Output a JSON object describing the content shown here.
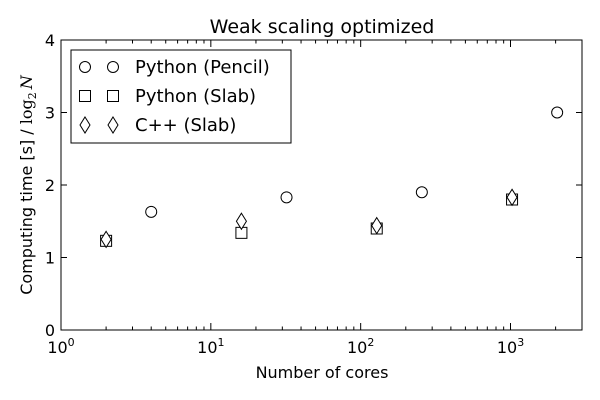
{
  "chart_data": {
    "type": "scatter",
    "title": "Weak scaling optimized",
    "xlabel": "Number of cores",
    "ylabel": "Computing time [s] / ",
    "ylabel_math": {
      "base": "log",
      "sub": "2",
      "var": "N"
    },
    "xscale": "log",
    "xlim": [
      1,
      3000
    ],
    "ylim": [
      0,
      4
    ],
    "x_ticks": [
      {
        "value": 1,
        "base": "10",
        "exp": "0"
      },
      {
        "value": 10,
        "base": "10",
        "exp": "1"
      },
      {
        "value": 100,
        "base": "10",
        "exp": "2"
      },
      {
        "value": 1000,
        "base": "10",
        "exp": "3"
      }
    ],
    "y_ticks": [
      {
        "value": 0,
        "label": "0"
      },
      {
        "value": 1,
        "label": "1"
      },
      {
        "value": 2,
        "label": "2"
      },
      {
        "value": 3,
        "label": "3"
      },
      {
        "value": 4,
        "label": "4"
      }
    ],
    "legend_position": "top-left",
    "series": [
      {
        "name": "Python (Pencil)",
        "marker": "circle",
        "x": [
          4,
          32,
          256,
          2048
        ],
        "y": [
          1.63,
          1.83,
          1.9,
          3.0
        ]
      },
      {
        "name": "Python (Slab)",
        "marker": "square",
        "x": [
          2,
          16,
          128,
          1024
        ],
        "y": [
          1.23,
          1.34,
          1.4,
          1.8
        ]
      },
      {
        "name": "C++ (Slab)",
        "marker": "diamond",
        "x": [
          2,
          16,
          128,
          1024
        ],
        "y": [
          1.25,
          1.5,
          1.44,
          1.83
        ]
      }
    ],
    "colors": {
      "marker_face": "#ffffff",
      "marker_edge": "#000000",
      "axes": "#000000"
    }
  }
}
